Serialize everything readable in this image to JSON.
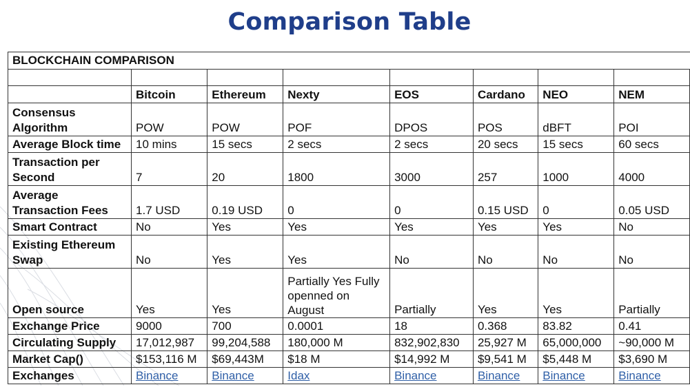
{
  "title": "Comparison Table",
  "table": {
    "caption": "BLOCKCHAIN COMPARISON",
    "columns": [
      "Bitcoin",
      "Ethereum",
      "Nexty",
      "EOS",
      "Cardano",
      "NEO",
      "NEM"
    ],
    "rows": [
      {
        "label": "Consensus Algorithm",
        "cells": [
          "POW",
          "POW",
          "POF",
          "DPOS",
          "POS",
          "dBFT",
          "POI"
        ]
      },
      {
        "label": "Average Block time",
        "cells": [
          "10 mins",
          "15 secs",
          "2 secs",
          "2 secs",
          "20 secs",
          "15 secs",
          "60 secs"
        ]
      },
      {
        "label": "Transaction per Second",
        "cells": [
          "7",
          "20",
          "1800",
          "3000",
          "257",
          "1000",
          "4000"
        ]
      },
      {
        "label": "Average Transaction Fees",
        "cells": [
          "1.7 USD",
          "0.19 USD",
          "0",
          "0",
          "0.15 USD",
          "0",
          "0.05 USD"
        ]
      },
      {
        "label": "Smart Contract",
        "cells": [
          "No",
          "Yes",
          "Yes",
          "Yes",
          "Yes",
          "Yes",
          "No"
        ]
      },
      {
        "label": "Existing Ethereum Swap",
        "cells": [
          "No",
          "Yes",
          "Yes",
          "No",
          "No",
          "No",
          "No"
        ]
      },
      {
        "label": "Open source",
        "cells": [
          "Yes",
          "Yes",
          "Partially Yes Fully openned on August",
          "Partially",
          "Yes",
          "Yes",
          "Partially"
        ]
      },
      {
        "label": "Exchange Price",
        "cells": [
          "9000",
          "700",
          "0.0001",
          "18",
          "0.368",
          "83.82",
          "0.41"
        ]
      },
      {
        "label": "Circulating Supply",
        "cells": [
          "17,012,987",
          "99,204,588",
          "180,000 M",
          "832,902,830",
          "25,927 M",
          "65,000,000",
          "~90,000 M"
        ]
      },
      {
        "label": "Market Cap()",
        "cells": [
          "$153,116 M",
          "$69,443M",
          "$18 M",
          "$14,992 M",
          "$9,541 M",
          "$5,448 M",
          "$3,690 M"
        ]
      },
      {
        "label": "Exchanges",
        "cells": [
          "Binance",
          "Binance",
          "Idax",
          "Binance",
          "Binance",
          "Binance",
          "Binance"
        ]
      }
    ]
  },
  "colors": {
    "title": "#1f3e8a",
    "link": "#2f5fa7",
    "border": "#333333"
  }
}
